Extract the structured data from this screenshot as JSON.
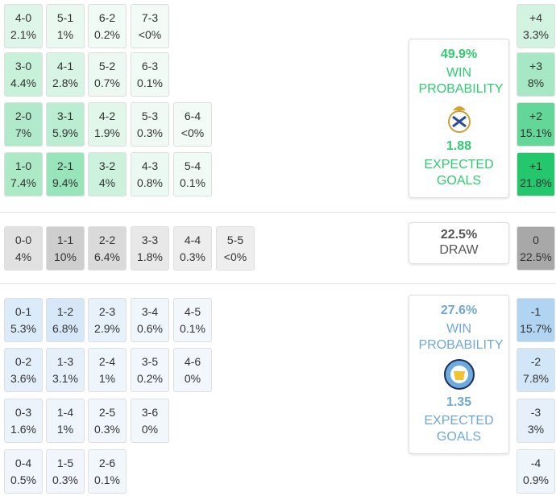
{
  "home": {
    "rows": [
      [
        {
          "score": "4-0",
          "prob": "2.1%"
        },
        {
          "score": "5-1",
          "prob": "1%"
        },
        {
          "score": "6-2",
          "prob": "0.2%"
        },
        {
          "score": "7-3",
          "prob": "<0%"
        }
      ],
      [
        {
          "score": "3-0",
          "prob": "4.4%"
        },
        {
          "score": "4-1",
          "prob": "2.8%"
        },
        {
          "score": "5-2",
          "prob": "0.7%"
        },
        {
          "score": "6-3",
          "prob": "0.1%"
        }
      ],
      [
        {
          "score": "2-0",
          "prob": "7%"
        },
        {
          "score": "3-1",
          "prob": "5.9%"
        },
        {
          "score": "4-2",
          "prob": "1.9%"
        },
        {
          "score": "5-3",
          "prob": "0.3%"
        },
        {
          "score": "6-4",
          "prob": "<0%"
        }
      ],
      [
        {
          "score": "1-0",
          "prob": "7.4%"
        },
        {
          "score": "2-1",
          "prob": "9.4%"
        },
        {
          "score": "3-2",
          "prob": "4%"
        },
        {
          "score": "4-3",
          "prob": "0.8%"
        },
        {
          "score": "5-4",
          "prob": "0.1%"
        }
      ]
    ],
    "margins": [
      {
        "label": "+4",
        "prob": "3.3%"
      },
      {
        "label": "+3",
        "prob": "8%"
      },
      {
        "label": "+2",
        "prob": "15.1%"
      },
      {
        "label": "+1",
        "prob": "21.8%"
      }
    ],
    "summary": {
      "win_probability": "49.9%",
      "win_label": "WIN PROBABILITY",
      "expected_goals": "1.88",
      "goals_label": "EXPECTED GOALS"
    }
  },
  "draw": {
    "rows": [
      [
        {
          "score": "0-0",
          "prob": "4%"
        },
        {
          "score": "1-1",
          "prob": "10%"
        },
        {
          "score": "2-2",
          "prob": "6.4%"
        },
        {
          "score": "3-3",
          "prob": "1.8%"
        },
        {
          "score": "4-4",
          "prob": "0.3%"
        },
        {
          "score": "5-5",
          "prob": "<0%"
        }
      ]
    ],
    "margins": [
      {
        "label": "0",
        "prob": "22.5%"
      }
    ],
    "summary": {
      "probability": "22.5%",
      "label": "DRAW"
    }
  },
  "away": {
    "rows": [
      [
        {
          "score": "0-1",
          "prob": "5.3%"
        },
        {
          "score": "1-2",
          "prob": "6.8%"
        },
        {
          "score": "2-3",
          "prob": "2.9%"
        },
        {
          "score": "3-4",
          "prob": "0.6%"
        },
        {
          "score": "4-5",
          "prob": "0.1%"
        }
      ],
      [
        {
          "score": "0-2",
          "prob": "3.6%"
        },
        {
          "score": "1-3",
          "prob": "3.1%"
        },
        {
          "score": "2-4",
          "prob": "1%"
        },
        {
          "score": "3-5",
          "prob": "0.2%"
        },
        {
          "score": "4-6",
          "prob": "0%"
        }
      ],
      [
        {
          "score": "0-3",
          "prob": "1.6%"
        },
        {
          "score": "1-4",
          "prob": "1%"
        },
        {
          "score": "2-5",
          "prob": "0.3%"
        },
        {
          "score": "3-6",
          "prob": "0%"
        }
      ],
      [
        {
          "score": "0-4",
          "prob": "0.5%"
        },
        {
          "score": "1-5",
          "prob": "0.3%"
        },
        {
          "score": "2-6",
          "prob": "0.1%"
        }
      ]
    ],
    "margins": [
      {
        "label": "-1",
        "prob": "15.7%"
      },
      {
        "label": "-2",
        "prob": "7.8%"
      },
      {
        "label": "-3",
        "prob": "3%"
      },
      {
        "label": "-4",
        "prob": "0.9%"
      }
    ],
    "summary": {
      "win_probability": "27.6%",
      "win_label": "WIN PROBABILITY",
      "expected_goals": "1.35",
      "goals_label": "EXPECTED GOALS"
    }
  }
}
